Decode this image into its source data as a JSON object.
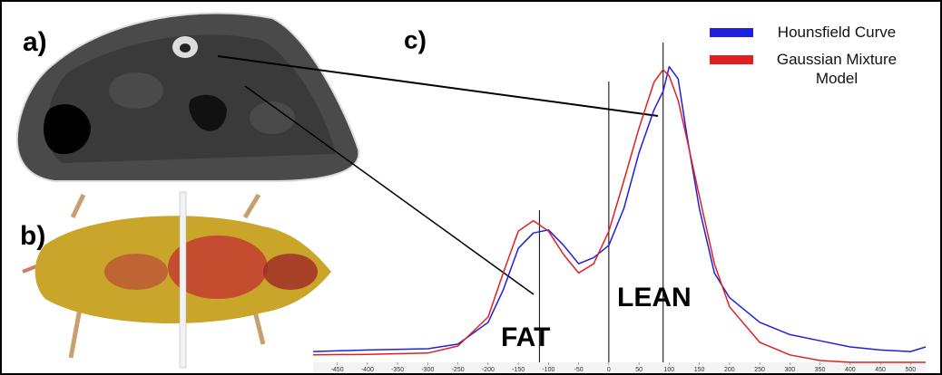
{
  "chart_data": {
    "type": "line",
    "panel_labels": [
      "a)",
      "b)",
      "c)"
    ],
    "annotations": [
      "FAT",
      "LEAN"
    ],
    "reference_lines": [
      -115,
      0,
      90
    ],
    "legend": "upper right",
    "x": [
      -490,
      -400,
      -300,
      -250,
      -200,
      -175,
      -150,
      -125,
      -100,
      -75,
      -50,
      -25,
      0,
      25,
      50,
      75,
      90,
      100,
      115,
      130,
      150,
      175,
      200,
      250,
      300,
      350,
      400,
      450,
      500,
      525
    ],
    "series": [
      {
        "name": "Hounsfield Curve",
        "color": "#1f1fe0",
        "values": [
          3.5,
          4,
          4.4,
          5.9,
          13,
          23.5,
          37,
          42,
          43,
          38,
          32,
          34,
          38,
          50,
          68,
          82,
          88,
          96,
          92,
          73,
          50,
          29,
          21,
          13,
          9,
          7,
          5,
          4,
          3.5,
          5
        ]
      },
      {
        "name": "Gaussian Mixture Model",
        "color": "#e02020",
        "values": [
          2.4,
          2.6,
          3,
          5.3,
          14.7,
          29,
          42.6,
          46,
          42.6,
          35,
          29,
          32,
          42.6,
          59,
          76,
          91,
          95,
          93,
          85,
          72,
          54,
          32,
          18,
          6.5,
          2.4,
          0.6,
          0,
          0,
          0,
          0
        ]
      }
    ],
    "xlim": [
      -490,
      525
    ],
    "ylim": [
      0,
      100
    ],
    "xticks": [
      -450,
      -400,
      -350,
      -300,
      -250,
      -200,
      -150,
      -100,
      -50,
      0,
      50,
      100,
      150,
      200,
      250,
      300,
      350,
      400,
      450,
      500
    ]
  }
}
